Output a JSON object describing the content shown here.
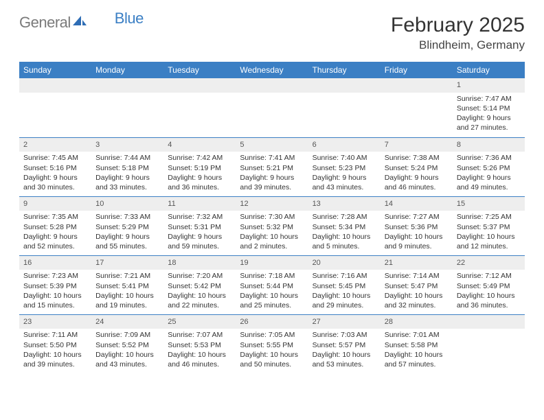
{
  "logo": {
    "text1": "General",
    "text2": "Blue"
  },
  "title": "February 2025",
  "subtitle": "Blindheim, Germany",
  "colors": {
    "header_bg": "#3b7fc4",
    "header_text": "#ffffff",
    "daynum_bg": "#eeeeee",
    "rule": "#3b7fc4",
    "logo_gray": "#7a7a7a",
    "logo_blue": "#3b7fc4"
  },
  "columns": [
    "Sunday",
    "Monday",
    "Tuesday",
    "Wednesday",
    "Thursday",
    "Friday",
    "Saturday"
  ],
  "weeks": [
    [
      {
        "day": "",
        "lines": []
      },
      {
        "day": "",
        "lines": []
      },
      {
        "day": "",
        "lines": []
      },
      {
        "day": "",
        "lines": []
      },
      {
        "day": "",
        "lines": []
      },
      {
        "day": "",
        "lines": []
      },
      {
        "day": "1",
        "lines": [
          "Sunrise: 7:47 AM",
          "Sunset: 5:14 PM",
          "Daylight: 9 hours and 27 minutes."
        ]
      }
    ],
    [
      {
        "day": "2",
        "lines": [
          "Sunrise: 7:45 AM",
          "Sunset: 5:16 PM",
          "Daylight: 9 hours and 30 minutes."
        ]
      },
      {
        "day": "3",
        "lines": [
          "Sunrise: 7:44 AM",
          "Sunset: 5:18 PM",
          "Daylight: 9 hours and 33 minutes."
        ]
      },
      {
        "day": "4",
        "lines": [
          "Sunrise: 7:42 AM",
          "Sunset: 5:19 PM",
          "Daylight: 9 hours and 36 minutes."
        ]
      },
      {
        "day": "5",
        "lines": [
          "Sunrise: 7:41 AM",
          "Sunset: 5:21 PM",
          "Daylight: 9 hours and 39 minutes."
        ]
      },
      {
        "day": "6",
        "lines": [
          "Sunrise: 7:40 AM",
          "Sunset: 5:23 PM",
          "Daylight: 9 hours and 43 minutes."
        ]
      },
      {
        "day": "7",
        "lines": [
          "Sunrise: 7:38 AM",
          "Sunset: 5:24 PM",
          "Daylight: 9 hours and 46 minutes."
        ]
      },
      {
        "day": "8",
        "lines": [
          "Sunrise: 7:36 AM",
          "Sunset: 5:26 PM",
          "Daylight: 9 hours and 49 minutes."
        ]
      }
    ],
    [
      {
        "day": "9",
        "lines": [
          "Sunrise: 7:35 AM",
          "Sunset: 5:28 PM",
          "Daylight: 9 hours and 52 minutes."
        ]
      },
      {
        "day": "10",
        "lines": [
          "Sunrise: 7:33 AM",
          "Sunset: 5:29 PM",
          "Daylight: 9 hours and 55 minutes."
        ]
      },
      {
        "day": "11",
        "lines": [
          "Sunrise: 7:32 AM",
          "Sunset: 5:31 PM",
          "Daylight: 9 hours and 59 minutes."
        ]
      },
      {
        "day": "12",
        "lines": [
          "Sunrise: 7:30 AM",
          "Sunset: 5:32 PM",
          "Daylight: 10 hours and 2 minutes."
        ]
      },
      {
        "day": "13",
        "lines": [
          "Sunrise: 7:28 AM",
          "Sunset: 5:34 PM",
          "Daylight: 10 hours and 5 minutes."
        ]
      },
      {
        "day": "14",
        "lines": [
          "Sunrise: 7:27 AM",
          "Sunset: 5:36 PM",
          "Daylight: 10 hours and 9 minutes."
        ]
      },
      {
        "day": "15",
        "lines": [
          "Sunrise: 7:25 AM",
          "Sunset: 5:37 PM",
          "Daylight: 10 hours and 12 minutes."
        ]
      }
    ],
    [
      {
        "day": "16",
        "lines": [
          "Sunrise: 7:23 AM",
          "Sunset: 5:39 PM",
          "Daylight: 10 hours and 15 minutes."
        ]
      },
      {
        "day": "17",
        "lines": [
          "Sunrise: 7:21 AM",
          "Sunset: 5:41 PM",
          "Daylight: 10 hours and 19 minutes."
        ]
      },
      {
        "day": "18",
        "lines": [
          "Sunrise: 7:20 AM",
          "Sunset: 5:42 PM",
          "Daylight: 10 hours and 22 minutes."
        ]
      },
      {
        "day": "19",
        "lines": [
          "Sunrise: 7:18 AM",
          "Sunset: 5:44 PM",
          "Daylight: 10 hours and 25 minutes."
        ]
      },
      {
        "day": "20",
        "lines": [
          "Sunrise: 7:16 AM",
          "Sunset: 5:45 PM",
          "Daylight: 10 hours and 29 minutes."
        ]
      },
      {
        "day": "21",
        "lines": [
          "Sunrise: 7:14 AM",
          "Sunset: 5:47 PM",
          "Daylight: 10 hours and 32 minutes."
        ]
      },
      {
        "day": "22",
        "lines": [
          "Sunrise: 7:12 AM",
          "Sunset: 5:49 PM",
          "Daylight: 10 hours and 36 minutes."
        ]
      }
    ],
    [
      {
        "day": "23",
        "lines": [
          "Sunrise: 7:11 AM",
          "Sunset: 5:50 PM",
          "Daylight: 10 hours and 39 minutes."
        ]
      },
      {
        "day": "24",
        "lines": [
          "Sunrise: 7:09 AM",
          "Sunset: 5:52 PM",
          "Daylight: 10 hours and 43 minutes."
        ]
      },
      {
        "day": "25",
        "lines": [
          "Sunrise: 7:07 AM",
          "Sunset: 5:53 PM",
          "Daylight: 10 hours and 46 minutes."
        ]
      },
      {
        "day": "26",
        "lines": [
          "Sunrise: 7:05 AM",
          "Sunset: 5:55 PM",
          "Daylight: 10 hours and 50 minutes."
        ]
      },
      {
        "day": "27",
        "lines": [
          "Sunrise: 7:03 AM",
          "Sunset: 5:57 PM",
          "Daylight: 10 hours and 53 minutes."
        ]
      },
      {
        "day": "28",
        "lines": [
          "Sunrise: 7:01 AM",
          "Sunset: 5:58 PM",
          "Daylight: 10 hours and 57 minutes."
        ]
      },
      {
        "day": "",
        "lines": []
      }
    ]
  ]
}
